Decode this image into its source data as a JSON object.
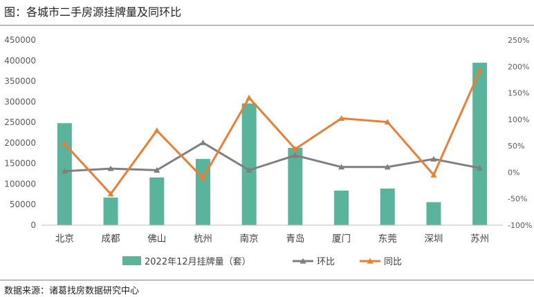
{
  "figure": {
    "title": "图：各城市二手房源挂牌量及同环比",
    "source": "数据来源：诸葛找房数据研究中心"
  },
  "chart_data": {
    "type": "bar",
    "categories": [
      "北京",
      "成都",
      "佛山",
      "杭州",
      "南京",
      "青岛",
      "厦门",
      "东莞",
      "深圳",
      "苏州"
    ],
    "series": [
      {
        "name": "2022年12月挂牌量（套）",
        "type": "bar",
        "axis": "left",
        "color": "#5ab39b",
        "values": [
          248000,
          67000,
          116000,
          161000,
          296000,
          188000,
          84000,
          89000,
          56000,
          395000
        ]
      },
      {
        "name": "环比",
        "type": "line",
        "axis": "right",
        "color": "#7f7f7f",
        "marker": "triangle",
        "values": [
          2,
          7,
          4,
          56,
          4,
          32,
          10,
          10,
          25,
          8
        ]
      },
      {
        "name": "同比",
        "type": "line",
        "axis": "right",
        "color": "#ed7d31",
        "marker": "triangle",
        "values": [
          54,
          -41,
          79,
          -11,
          141,
          44,
          102,
          95,
          -5,
          192
        ]
      }
    ],
    "y_left": {
      "min": 0,
      "max": 450000,
      "step": 50000,
      "ticks": [
        "0",
        "50000",
        "100000",
        "150000",
        "200000",
        "250000",
        "300000",
        "350000",
        "400000",
        "450000"
      ]
    },
    "y_right": {
      "min": -100,
      "max": 250,
      "step": 50,
      "ticks": [
        "-100%",
        "-50%",
        "0%",
        "50%",
        "100%",
        "150%",
        "200%",
        "250%"
      ]
    },
    "grid": false,
    "legend_position": "bottom"
  }
}
